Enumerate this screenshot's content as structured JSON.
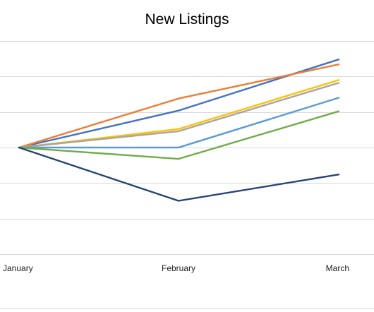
{
  "chart_data": {
    "type": "line",
    "title": "New Listings",
    "categories": [
      "January",
      "February",
      "March"
    ],
    "ylim": [
      -1.55,
      1.55
    ],
    "grid": true,
    "gridlines": [
      -1.5,
      -1.0,
      -0.5,
      0.0,
      0.5,
      1.0,
      1.5
    ],
    "series": [
      {
        "color": "#4472C4",
        "values": [
          0,
          0.52,
          1.24
        ]
      },
      {
        "color": "#ED7D31",
        "values": [
          0,
          0.69,
          1.17
        ]
      },
      {
        "color": "#FFC000",
        "values": [
          0,
          0.26,
          0.95
        ]
      },
      {
        "color": "#A5A5A5",
        "values": [
          0,
          0.23,
          0.91
        ]
      },
      {
        "color": "#5B9BD5",
        "values": [
          0,
          0.0,
          0.7
        ]
      },
      {
        "color": "#70AD47",
        "values": [
          0,
          -0.16,
          0.51
        ]
      },
      {
        "color": "#264478",
        "values": [
          0,
          -0.75,
          -0.38
        ]
      }
    ]
  }
}
